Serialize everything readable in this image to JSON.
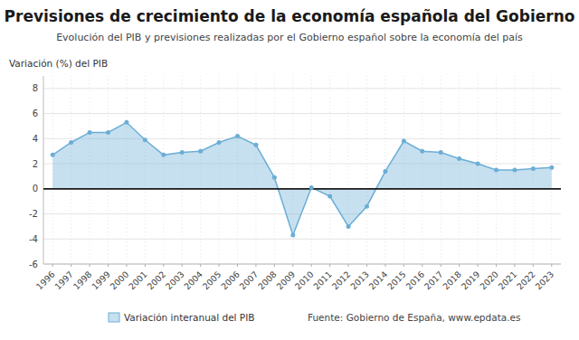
{
  "chart_data": {
    "type": "area",
    "title": "Previsiones de crecimiento de la economía española del Gobierno",
    "subtitle": "Evolución del PIB y previsiones realizadas por el Gobierno español sobre la economía del país",
    "y_label": "Variación (%) del PIB",
    "source": "Fuente: Gobierno de España, www.epdata.es",
    "x": [
      1996,
      1997,
      1998,
      1999,
      2000,
      2001,
      2002,
      2003,
      2004,
      2005,
      2006,
      2007,
      2008,
      2009,
      2010,
      2011,
      2012,
      2013,
      2014,
      2015,
      2016,
      2017,
      2018,
      2019,
      2020,
      2021,
      2022,
      2023
    ],
    "series": [
      {
        "name": "Variación interanual del PIB",
        "color": "#6baed6",
        "marker": "circle",
        "line_style": "solid",
        "values": [
          2.7,
          3.7,
          4.5,
          4.5,
          5.3,
          3.9,
          2.7,
          2.9,
          3.0,
          3.7,
          4.2,
          3.5,
          0.9,
          -3.7,
          0.1,
          -0.6,
          -3.0,
          -1.4,
          1.4,
          3.8,
          3.0,
          2.9,
          2.4,
          2.0,
          1.5,
          1.5,
          1.6,
          1.7
        ]
      }
    ],
    "xlim": [
      1995.5,
      2023.5
    ],
    "xticks": [
      1996,
      1997,
      1998,
      1999,
      2000,
      2001,
      2002,
      2003,
      2004,
      2005,
      2006,
      2007,
      2008,
      2009,
      2010,
      2011,
      2012,
      2013,
      2014,
      2015,
      2016,
      2017,
      2018,
      2019,
      2020,
      2021,
      2022,
      2023
    ],
    "ylim": [
      -6,
      9
    ],
    "yticks": [
      -6,
      -4,
      -2,
      0,
      2,
      4,
      6,
      8
    ],
    "grid": true,
    "legend": "bottom"
  }
}
